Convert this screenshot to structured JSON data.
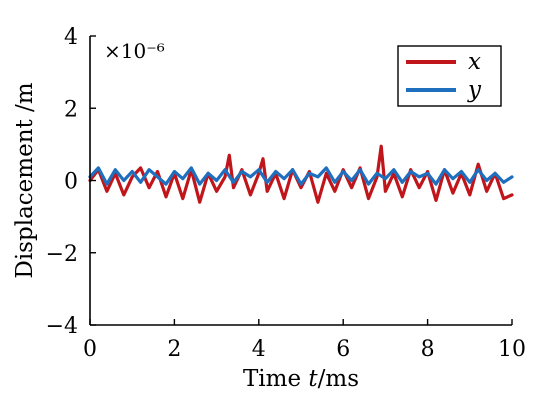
{
  "chart_data": {
    "type": "line",
    "title": "",
    "xlabel_prefix": "Time ",
    "xlabel_var": "t",
    "xlabel_suffix": "/ms",
    "ylabel": "Displacement /m",
    "y_multiplier": "×10⁻⁶",
    "xlim": [
      0,
      10
    ],
    "ylim": [
      -4,
      4
    ],
    "x_ticks": [
      0,
      2,
      4,
      6,
      8,
      10
    ],
    "y_ticks": [
      -4,
      -2,
      0,
      2,
      4
    ],
    "x_tick_labels": [
      "0",
      "2",
      "4",
      "6",
      "8",
      "10"
    ],
    "y_tick_labels": [
      "−4",
      "−2",
      "0",
      "2",
      "4"
    ],
    "legend_position": "top-right",
    "series": [
      {
        "name": "x",
        "color": "#c0161b",
        "x": [
          0,
          0.2,
          0.4,
          0.6,
          0.8,
          1.0,
          1.2,
          1.4,
          1.6,
          1.8,
          2.0,
          2.2,
          2.4,
          2.6,
          2.8,
          3.0,
          3.2,
          3.3,
          3.4,
          3.6,
          3.8,
          4.0,
          4.1,
          4.2,
          4.4,
          4.6,
          4.8,
          5.0,
          5.2,
          5.4,
          5.6,
          5.8,
          6.0,
          6.2,
          6.4,
          6.6,
          6.8,
          6.9,
          7.0,
          7.2,
          7.4,
          7.6,
          7.8,
          8.0,
          8.2,
          8.4,
          8.6,
          8.8,
          9.0,
          9.2,
          9.4,
          9.6,
          9.8,
          10.0
        ],
        "values": [
          0.0,
          0.3,
          -0.3,
          0.2,
          -0.4,
          0.1,
          0.35,
          -0.2,
          0.25,
          -0.45,
          0.2,
          -0.5,
          0.3,
          -0.6,
          0.2,
          -0.3,
          0.1,
          0.7,
          -0.2,
          0.3,
          -0.4,
          0.2,
          0.6,
          -0.3,
          0.2,
          -0.5,
          0.3,
          -0.2,
          0.25,
          -0.6,
          0.2,
          -0.3,
          0.3,
          -0.2,
          0.35,
          -0.5,
          0.1,
          0.95,
          -0.3,
          0.2,
          -0.45,
          0.3,
          -0.2,
          0.25,
          -0.55,
          0.3,
          -0.35,
          0.2,
          -0.4,
          0.45,
          -0.3,
          0.2,
          -0.5,
          -0.4
        ]
      },
      {
        "name": "y",
        "color": "#1f6fbf",
        "x": [
          0,
          0.2,
          0.4,
          0.6,
          0.8,
          1.0,
          1.2,
          1.4,
          1.6,
          1.8,
          2.0,
          2.2,
          2.4,
          2.6,
          2.8,
          3.0,
          3.2,
          3.4,
          3.6,
          3.8,
          4.0,
          4.2,
          4.4,
          4.6,
          4.8,
          5.0,
          5.2,
          5.4,
          5.6,
          5.8,
          6.0,
          6.2,
          6.4,
          6.6,
          6.8,
          7.0,
          7.2,
          7.4,
          7.6,
          7.8,
          8.0,
          8.2,
          8.4,
          8.6,
          8.8,
          9.0,
          9.2,
          9.4,
          9.6,
          9.8,
          10.0
        ],
        "values": [
          0.1,
          0.35,
          -0.1,
          0.3,
          0.0,
          0.25,
          -0.05,
          0.3,
          0.1,
          -0.1,
          0.25,
          0.05,
          0.35,
          -0.1,
          0.2,
          0.0,
          0.3,
          -0.05,
          0.25,
          0.1,
          0.3,
          -0.05,
          0.25,
          0.05,
          0.3,
          -0.1,
          0.2,
          0.1,
          0.35,
          -0.05,
          0.25,
          0.0,
          0.3,
          -0.1,
          0.2,
          0.05,
          0.3,
          -0.05,
          0.25,
          0.1,
          0.2,
          -0.1,
          0.3,
          0.05,
          0.25,
          -0.05,
          0.3,
          0.0,
          0.2,
          -0.05,
          0.1
        ]
      }
    ]
  }
}
